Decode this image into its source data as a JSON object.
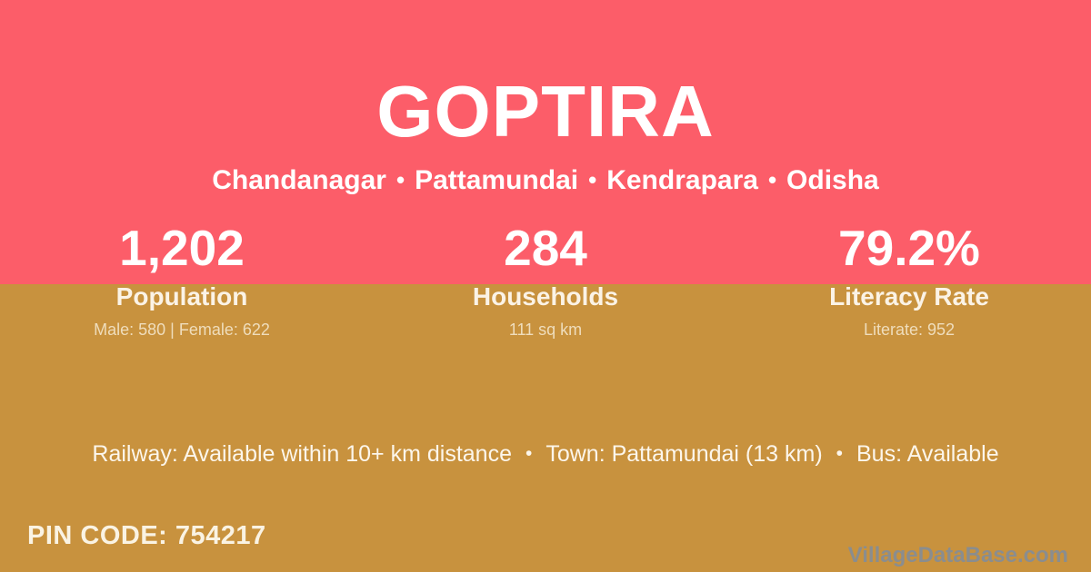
{
  "card": {
    "title": "GOPTIRA",
    "region": {
      "parts": [
        "Chandanagar",
        "Pattamundai",
        "Kendrapara",
        "Odisha"
      ],
      "separator": "•"
    },
    "stats": [
      {
        "value": "1,202",
        "label": "Population",
        "detail": "Male: 580 | Female: 622"
      },
      {
        "value": "284",
        "label": "Households",
        "detail": "111 sq km"
      },
      {
        "value": "79.2%",
        "label": "Literacy Rate",
        "detail": "Literate: 952"
      }
    ],
    "amenities": {
      "items": [
        "Railway: Available within 10+ km distance",
        "Town: Pattamundai (13 km)",
        "Bus: Available"
      ],
      "separator": "•"
    },
    "pin": {
      "label": "PIN CODE:",
      "value": "754217"
    },
    "watermark": "VillageDataBase.com",
    "colors": {
      "header_bg": "#FC5D69",
      "body_bg": "#C8923E",
      "text_primary": "#FFFFFF",
      "text_cream": "#EFDDBC",
      "watermark_gray": "#8A8D8F"
    }
  }
}
